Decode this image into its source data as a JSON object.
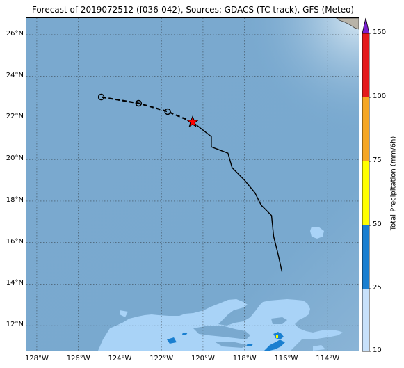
{
  "title": "Forecast of 2019072512 (f036-042), Sources: GDACS (TC track), GFS (Meteo)",
  "colors": {
    "ocean": "#7aa9cf",
    "ocean_light": "#b9d5ea",
    "precip_10_25": "#a9d3f7",
    "precip_25_50": "#1a7fd0",
    "precip_50_75": "#ffff00",
    "precip_75_100": "#f5a623",
    "precip_100_150": "#e41a1c",
    "precip_over_150": "#7a1fd0",
    "land": "#b8b3a8",
    "track": "#000000",
    "current_position": "#ff0000"
  },
  "map": {
    "lon_range": [
      -128.5,
      -112.5
    ],
    "lat_range": [
      10.8,
      26.8
    ],
    "lat_ticks": [
      "12°N",
      "14°N",
      "16°N",
      "18°N",
      "20°N",
      "22°N",
      "24°N",
      "26°N"
    ],
    "lon_ticks": [
      "128°W",
      "126°W",
      "124°W",
      "122°W",
      "120°W",
      "118°W",
      "116°W",
      "114°W"
    ],
    "grid": true,
    "past_track": [
      [
        -116.2,
        14.6
      ],
      [
        -116.4,
        15.5
      ],
      [
        -116.6,
        16.3
      ],
      [
        -116.7,
        17.3
      ],
      [
        -117.2,
        17.8
      ],
      [
        -117.5,
        18.4
      ],
      [
        -118.0,
        19.0
      ],
      [
        -118.6,
        19.6
      ],
      [
        -118.8,
        20.3
      ],
      [
        -119.6,
        20.6
      ],
      [
        -119.6,
        21.1
      ],
      [
        -120.5,
        21.8
      ]
    ],
    "forecast_track": [
      [
        -120.5,
        21.8
      ],
      [
        -121.7,
        22.3
      ],
      [
        -123.1,
        22.7
      ],
      [
        -124.9,
        23.0
      ]
    ],
    "forecast_points": [
      [
        -121.7,
        22.3
      ],
      [
        -123.1,
        22.7
      ],
      [
        -124.9,
        23.0
      ]
    ],
    "current_position": [
      -120.5,
      21.8
    ]
  },
  "colorbar": {
    "label": "Total Precipitation (mm/6h)",
    "ticks": [
      "10",
      "25",
      "50",
      "75",
      "100",
      "150"
    ],
    "extend": "max"
  }
}
